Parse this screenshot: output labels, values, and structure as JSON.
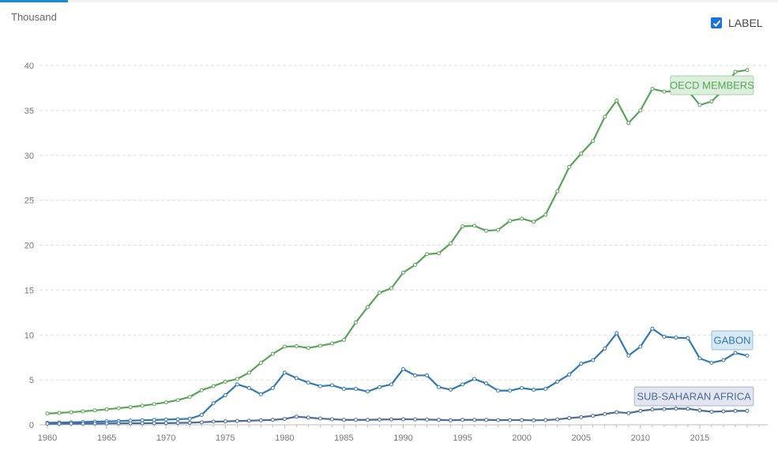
{
  "header": {
    "unit_label": "Thousand"
  },
  "controls": {
    "label_toggle": "LABEL",
    "label_checked": true
  },
  "chart_data": {
    "type": "line",
    "x": [
      1960,
      1961,
      1962,
      1963,
      1964,
      1965,
      1966,
      1967,
      1968,
      1969,
      1970,
      1971,
      1972,
      1973,
      1974,
      1975,
      1976,
      1977,
      1978,
      1979,
      1980,
      1981,
      1982,
      1983,
      1984,
      1985,
      1986,
      1987,
      1988,
      1989,
      1990,
      1991,
      1992,
      1993,
      1994,
      1995,
      1996,
      1997,
      1998,
      1999,
      2000,
      2001,
      2002,
      2003,
      2004,
      2005,
      2006,
      2007,
      2008,
      2009,
      2010,
      2011,
      2012,
      2013,
      2014,
      2015,
      2016,
      2017,
      2018,
      2019
    ],
    "xlim": [
      1960,
      2020
    ],
    "ylim": [
      0,
      40
    ],
    "yticks": [
      0,
      5,
      10,
      15,
      20,
      25,
      30,
      35,
      40
    ],
    "xticks": [
      1960,
      1965,
      1970,
      1975,
      1980,
      1985,
      1990,
      1995,
      2000,
      2005,
      2010,
      2015
    ],
    "grid": true,
    "series": [
      {
        "name": "OECD MEMBERS",
        "color": "#5aa35a",
        "label_bg": "#dcefdc",
        "values": [
          1.25,
          1.32,
          1.4,
          1.5,
          1.6,
          1.72,
          1.85,
          1.97,
          2.12,
          2.3,
          2.5,
          2.75,
          3.1,
          3.85,
          4.3,
          4.8,
          5.1,
          5.8,
          6.9,
          7.9,
          8.7,
          8.75,
          8.55,
          8.8,
          9.05,
          9.45,
          11.4,
          13.1,
          14.7,
          15.2,
          16.95,
          17.8,
          19.0,
          19.1,
          20.2,
          22.1,
          22.15,
          21.6,
          21.7,
          22.7,
          22.95,
          22.6,
          23.4,
          26.0,
          28.7,
          30.2,
          31.6,
          34.3,
          36.1,
          33.6,
          35.0,
          37.4,
          37.1,
          37.15,
          37.25,
          35.6,
          36.0,
          37.3,
          39.3,
          39.5
        ]
      },
      {
        "name": "GABON",
        "color": "#3278b4",
        "label_bg": "#d8e9f6",
        "values": [
          0.22,
          0.25,
          0.28,
          0.31,
          0.35,
          0.38,
          0.42,
          0.46,
          0.5,
          0.54,
          0.58,
          0.62,
          0.68,
          1.1,
          2.4,
          3.3,
          4.5,
          4.1,
          3.4,
          4.1,
          5.8,
          5.2,
          4.7,
          4.3,
          4.4,
          4.0,
          4.0,
          3.7,
          4.2,
          4.5,
          6.2,
          5.5,
          5.5,
          4.2,
          3.9,
          4.5,
          5.1,
          4.6,
          3.8,
          3.8,
          4.1,
          3.9,
          4.0,
          4.8,
          5.6,
          6.8,
          7.2,
          8.5,
          10.2,
          7.7,
          8.7,
          10.7,
          9.8,
          9.7,
          9.65,
          7.4,
          6.9,
          7.2,
          8.0,
          7.7
        ]
      },
      {
        "name": "SUB-SAHARAN AFRICA",
        "color": "#4a6a9a",
        "label_bg": "#e3e6f0",
        "values": [
          0.12,
          0.12,
          0.13,
          0.13,
          0.14,
          0.15,
          0.16,
          0.17,
          0.17,
          0.18,
          0.19,
          0.21,
          0.23,
          0.28,
          0.35,
          0.38,
          0.42,
          0.45,
          0.5,
          0.55,
          0.65,
          0.9,
          0.8,
          0.7,
          0.62,
          0.55,
          0.55,
          0.55,
          0.58,
          0.6,
          0.62,
          0.6,
          0.58,
          0.55,
          0.5,
          0.55,
          0.55,
          0.55,
          0.52,
          0.52,
          0.52,
          0.5,
          0.52,
          0.6,
          0.75,
          0.85,
          1.0,
          1.2,
          1.4,
          1.3,
          1.55,
          1.7,
          1.75,
          1.8,
          1.78,
          1.6,
          1.45,
          1.5,
          1.55,
          1.55
        ]
      }
    ]
  }
}
